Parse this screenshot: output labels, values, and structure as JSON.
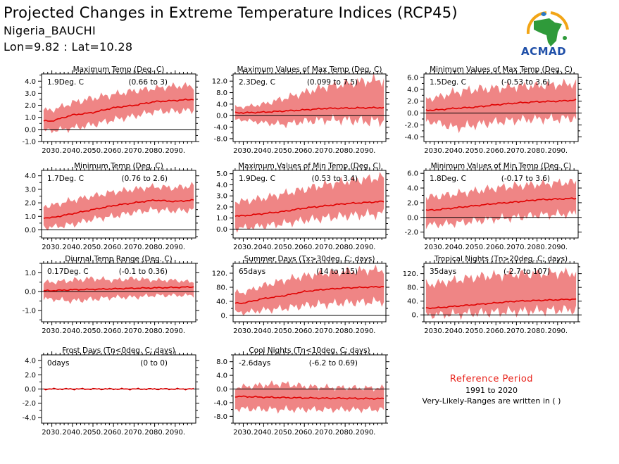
{
  "header": {
    "title": "Projected Changes in Extreme Temperature Indices (RCP45)",
    "location": "Nigeria_BAUCHI",
    "coords": "Lon=9.82 : Lat=10.28"
  },
  "logo": {
    "text": "ACMAD",
    "icon": "africa-map-logo-icon"
  },
  "reference": {
    "title": "Reference Period",
    "years": "1991 to 2020",
    "note": "Very-Likely-Ranges are written in ( )"
  },
  "colors": {
    "band": "#ef8585",
    "line": "#e00000",
    "zero": "#000000",
    "title_text": "#e8221a"
  },
  "x_tick_labels": [
    "2030.",
    "2040.",
    "2050.",
    "2060.",
    "2070.",
    "2080.",
    "2090."
  ],
  "chart_data": [
    {
      "type": "line",
      "title": "Maximum Temp (Deg. C)",
      "median_label": "1.9Deg. C",
      "range_label": "(0.66 to 3)",
      "xlim": [
        2025,
        2100
      ],
      "ylim": [
        -1.0,
        4.6
      ],
      "yticks": [
        -1.0,
        0,
        1,
        2,
        3,
        4
      ],
      "ytick_labels": [
        "-1.0",
        "0.0",
        "1.0",
        "2.0",
        "3.0",
        "4.0"
      ],
      "x": [
        2030,
        2040,
        2050,
        2060,
        2070,
        2080,
        2090,
        2099
      ],
      "series": [
        {
          "values": [
            0.7,
            1.2,
            1.4,
            1.8,
            2.0,
            2.3,
            2.4,
            2.5
          ]
        }
      ],
      "band": {
        "lower": [
          -0.1,
          0.1,
          0.4,
          0.8,
          1.1,
          1.5,
          1.5,
          1.6
        ],
        "upper": [
          1.6,
          2.2,
          2.6,
          2.9,
          3.2,
          3.4,
          3.6,
          3.6
        ]
      }
    },
    {
      "type": "line",
      "title": "Maximum Values of Max Temp (Deg. C)",
      "median_label": "2.3Deg. C",
      "range_label": "(0.099 to 7.5)",
      "xlim": [
        2025,
        2100
      ],
      "ylim": [
        -9.0,
        14.5
      ],
      "yticks": [
        -8,
        -4,
        0,
        4,
        8,
        12
      ],
      "ytick_labels": [
        "-8.0",
        "-4.0",
        "0.0",
        "4.0",
        "8.0",
        "12.0"
      ],
      "x": [
        2030,
        2040,
        2050,
        2060,
        2070,
        2080,
        2090,
        2099
      ],
      "series": [
        {
          "values": [
            1.0,
            1.2,
            1.6,
            2.0,
            2.5,
            2.6,
            2.7,
            2.8
          ]
        }
      ],
      "band": {
        "lower": [
          -1.5,
          -2.5,
          -3.0,
          -2.0,
          -1.5,
          -1.5,
          -2.0,
          -1.8
        ],
        "upper": [
          3.0,
          4.0,
          6.0,
          8.0,
          10.0,
          11.0,
          12.0,
          12.5
        ]
      }
    },
    {
      "type": "line",
      "title": "Minimum Values of Max Temp (Deg. C)",
      "median_label": "1.5Deg. C",
      "range_label": "(-0.53 to 3.6)",
      "xlim": [
        2025,
        2100
      ],
      "ylim": [
        -4.8,
        6.6
      ],
      "yticks": [
        -4,
        -2,
        0,
        2,
        4,
        6
      ],
      "ytick_labels": [
        "-4.0",
        "-2.0",
        "0.0",
        "2.0",
        "4.0",
        "6.0"
      ],
      "x": [
        2030,
        2040,
        2050,
        2060,
        2070,
        2080,
        2090,
        2099
      ],
      "series": [
        {
          "values": [
            0.5,
            0.8,
            1.0,
            1.4,
            1.7,
            1.9,
            2.0,
            2.2
          ]
        }
      ],
      "band": {
        "lower": [
          -1.5,
          -2.5,
          -2.0,
          -1.5,
          -1.2,
          -1.0,
          -1.0,
          -0.8
        ],
        "upper": [
          2.5,
          3.5,
          4.0,
          4.2,
          4.5,
          4.6,
          4.8,
          5.0
        ]
      }
    },
    {
      "type": "line",
      "title": "Minimum Temp (Deg. C)",
      "median_label": "1.7Deg. C",
      "range_label": "(0.76 to 2.6)",
      "xlim": [
        2025,
        2100
      ],
      "ylim": [
        -0.6,
        4.4
      ],
      "yticks": [
        0,
        1,
        2,
        3,
        4
      ],
      "ytick_labels": [
        "0.0",
        "1.0",
        "2.0",
        "3.0",
        "4.0"
      ],
      "x": [
        2030,
        2040,
        2050,
        2060,
        2070,
        2080,
        2090,
        2099
      ],
      "series": [
        {
          "values": [
            0.9,
            1.2,
            1.5,
            1.8,
            2.0,
            2.2,
            2.1,
            2.2
          ]
        }
      ],
      "band": {
        "lower": [
          0.2,
          0.4,
          0.8,
          1.0,
          1.3,
          1.5,
          1.4,
          1.5
        ],
        "upper": [
          1.8,
          2.2,
          2.5,
          2.8,
          3.0,
          3.2,
          3.1,
          3.3
        ]
      }
    },
    {
      "type": "line",
      "title": "Maximum Values of Min Temp (Deg. C)",
      "median_label": "1.9Deg. C",
      "range_label": "(0.53 to 3.4)",
      "xlim": [
        2025,
        2100
      ],
      "ylim": [
        -0.8,
        5.3
      ],
      "yticks": [
        0,
        1,
        2,
        3,
        4,
        5
      ],
      "ytick_labels": [
        "0.0",
        "1.0",
        "2.0",
        "3.0",
        "4.0",
        "5.0"
      ],
      "x": [
        2030,
        2040,
        2050,
        2060,
        2070,
        2080,
        2090,
        2099
      ],
      "series": [
        {
          "values": [
            1.2,
            1.4,
            1.6,
            1.9,
            2.1,
            2.3,
            2.4,
            2.5
          ]
        }
      ],
      "band": {
        "lower": [
          0.1,
          0.3,
          0.5,
          0.8,
          1.0,
          1.2,
          1.3,
          1.4
        ],
        "upper": [
          2.5,
          2.8,
          3.2,
          3.6,
          4.0,
          4.3,
          4.5,
          4.7
        ]
      }
    },
    {
      "type": "line",
      "title": "Minimum Values of Min Temp (Deg. C)",
      "median_label": "1.8Deg. C",
      "range_label": "(-0.17 to 3.6)",
      "xlim": [
        2025,
        2100
      ],
      "ylim": [
        -2.8,
        6.4
      ],
      "yticks": [
        -2,
        0,
        2,
        4,
        6
      ],
      "ytick_labels": [
        "-2.0",
        "0.0",
        "2.0",
        "4.0",
        "6.0"
      ],
      "x": [
        2030,
        2040,
        2050,
        2060,
        2070,
        2080,
        2090,
        2099
      ],
      "series": [
        {
          "values": [
            1.0,
            1.3,
            1.6,
            1.9,
            2.1,
            2.4,
            2.5,
            2.6
          ]
        }
      ],
      "band": {
        "lower": [
          -1.0,
          -0.8,
          -0.5,
          -0.2,
          0.0,
          0.3,
          0.4,
          0.5
        ],
        "upper": [
          2.8,
          3.2,
          3.6,
          4.0,
          4.3,
          4.5,
          4.7,
          4.8
        ]
      }
    },
    {
      "type": "line",
      "title": "Diurnal Temp Range (Deg. C)",
      "median_label": "0.17Deg. C",
      "range_label": "(-0.1 to 0.36)",
      "xlim": [
        2025,
        2100
      ],
      "ylim": [
        -1.6,
        1.5
      ],
      "yticks": [
        -1,
        0,
        1
      ],
      "ytick_labels": [
        "-1.0",
        "0.0",
        "1.0"
      ],
      "x": [
        2030,
        2040,
        2050,
        2060,
        2070,
        2080,
        2090,
        2099
      ],
      "series": [
        {
          "values": [
            0.05,
            0.1,
            0.12,
            0.15,
            0.18,
            0.2,
            0.22,
            0.25
          ]
        }
      ],
      "band": {
        "lower": [
          -0.4,
          -0.5,
          -0.4,
          -0.3,
          -0.3,
          -0.2,
          -0.2,
          -0.2
        ],
        "upper": [
          0.5,
          0.6,
          0.7,
          0.6,
          0.7,
          0.6,
          0.6,
          0.5
        ]
      }
    },
    {
      "type": "line",
      "title": "Summer Days (Tx>30deg. C; days)",
      "median_label": "65days",
      "range_label": "(14 to 115)",
      "xlim": [
        2025,
        2100
      ],
      "ylim": [
        -18,
        148
      ],
      "yticks": [
        0,
        40,
        80,
        120
      ],
      "ytick_labels": [
        "0.",
        "40.",
        "80.",
        "120."
      ],
      "x": [
        2030,
        2040,
        2050,
        2060,
        2070,
        2080,
        2090,
        2099
      ],
      "series": [
        {
          "values": [
            35,
            48,
            56,
            68,
            74,
            78,
            80,
            82
          ]
        }
      ],
      "band": {
        "lower": [
          8,
          15,
          20,
          28,
          32,
          36,
          38,
          40
        ],
        "upper": [
          65,
          85,
          100,
          112,
          120,
          125,
          128,
          130
        ]
      }
    },
    {
      "type": "line",
      "title": "Tropical Nights (Tn>20deg. C; days)",
      "median_label": "35days",
      "range_label": "(-2.7 to 107)",
      "xlim": [
        2025,
        2100
      ],
      "ylim": [
        -20,
        150
      ],
      "yticks": [
        0,
        40,
        80,
        120
      ],
      "ytick_labels": [
        "0.",
        "40.",
        "80.",
        "120."
      ],
      "x": [
        2030,
        2040,
        2050,
        2060,
        2070,
        2080,
        2090,
        2099
      ],
      "series": [
        {
          "values": [
            20,
            25,
            30,
            35,
            40,
            42,
            44,
            46
          ]
        }
      ],
      "band": {
        "lower": [
          0,
          2,
          5,
          8,
          10,
          12,
          14,
          15
        ],
        "upper": [
          90,
          100,
          110,
          115,
          118,
          120,
          122,
          122
        ]
      }
    },
    {
      "type": "line",
      "title": "Frost Days (Tn<0deg. C; days)",
      "median_label": "0days",
      "range_label": "(0 to 0)",
      "xlim": [
        2025,
        2100
      ],
      "ylim": [
        -4.8,
        4.8
      ],
      "yticks": [
        -4,
        -2,
        0,
        2,
        4
      ],
      "ytick_labels": [
        "-4.0",
        "-2.0",
        "0.0",
        "2.0",
        "4.0"
      ],
      "x": [
        2030,
        2040,
        2050,
        2060,
        2070,
        2080,
        2090,
        2099
      ],
      "series": [
        {
          "values": [
            0,
            0,
            0,
            0,
            0,
            0,
            0,
            0
          ]
        }
      ],
      "band": {
        "lower": [
          0,
          0,
          0,
          0,
          0,
          0,
          0,
          0
        ],
        "upper": [
          0,
          0,
          0,
          0,
          0,
          0,
          0,
          0
        ]
      }
    },
    {
      "type": "line",
      "title": "Cool Nights (Tn<10deg. C; days)",
      "median_label": "-2.6days",
      "range_label": "(-6.2 to 0.69)",
      "xlim": [
        2025,
        2100
      ],
      "ylim": [
        -10.0,
        10.0
      ],
      "yticks": [
        -8,
        -4,
        0,
        4,
        8
      ],
      "ytick_labels": [
        "-8.0",
        "-4.0",
        "0.0",
        "4.0",
        "8.0"
      ],
      "x": [
        2030,
        2040,
        2050,
        2060,
        2070,
        2080,
        2090,
        2099
      ],
      "series": [
        {
          "values": [
            -2.2,
            -2.4,
            -2.5,
            -2.6,
            -2.7,
            -2.7,
            -2.8,
            -2.8
          ]
        }
      ],
      "band": {
        "lower": [
          -5.8,
          -5.9,
          -6.0,
          -6.0,
          -6.0,
          -6.0,
          -6.0,
          -6.0
        ],
        "upper": [
          0.6,
          1.2,
          1.5,
          0.8,
          0.5,
          0.4,
          0.3,
          0.3
        ]
      }
    }
  ]
}
